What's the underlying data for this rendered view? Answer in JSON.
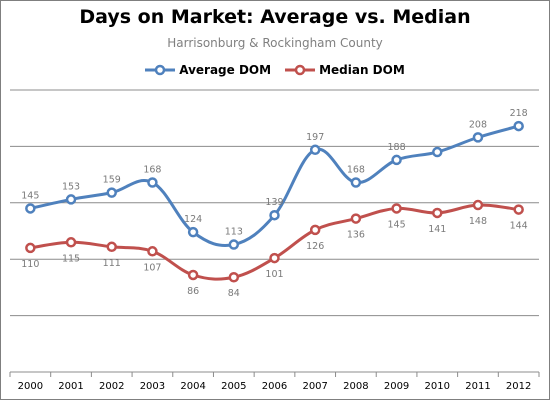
{
  "chart_data": {
    "type": "line",
    "title": "Days on Market: Average vs. Median",
    "subtitle": "Harrisonburg  & Rockingham  County",
    "categories": [
      "2000",
      "2001",
      "2002",
      "2003",
      "2004",
      "2005",
      "2006",
      "2007",
      "2008",
      "2009",
      "2010",
      "2011",
      "2012"
    ],
    "series": [
      {
        "name": "Average DOM",
        "color": "#4f81bd",
        "values": [
          145,
          153,
          159,
          168,
          124,
          113,
          139,
          197,
          168,
          188,
          195,
          208,
          218
        ],
        "labels_shown": [
          true,
          true,
          true,
          true,
          true,
          true,
          true,
          true,
          true,
          true,
          false,
          true,
          true
        ]
      },
      {
        "name": "Median DOM",
        "color": "#c0504d",
        "values": [
          110,
          115,
          111,
          107,
          86,
          84,
          101,
          126,
          136,
          145,
          141,
          148,
          144
        ],
        "labels_shown": [
          true,
          true,
          true,
          true,
          true,
          true,
          true,
          true,
          true,
          true,
          true,
          true,
          true
        ]
      }
    ],
    "ylim": [
      0,
      250
    ],
    "grid": true,
    "legend_position": "top"
  }
}
